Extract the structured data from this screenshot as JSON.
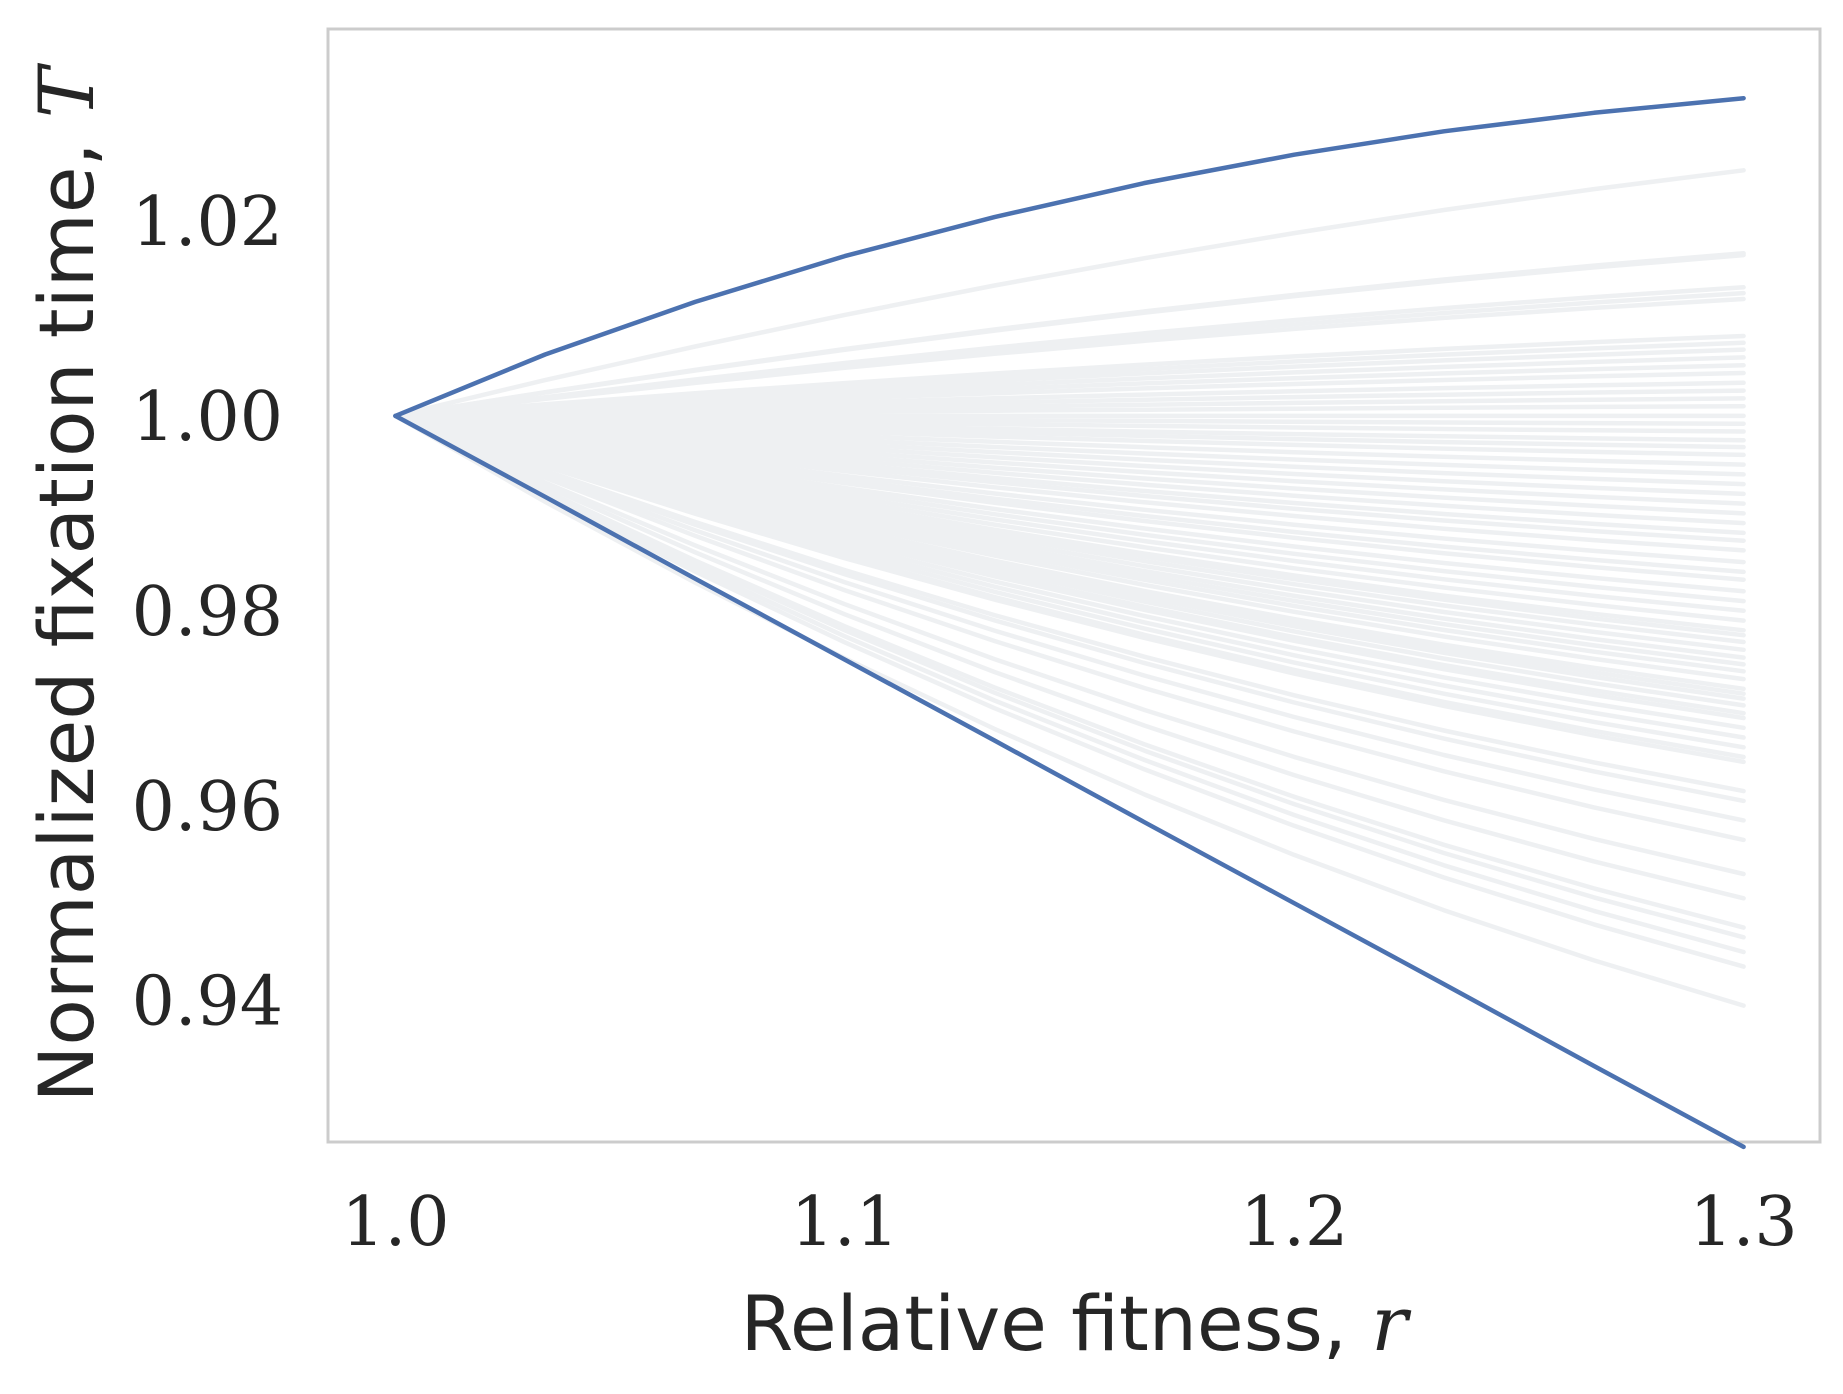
{
  "chart_data": {
    "type": "line",
    "xlabel": "Relative fitness, ",
    "xlabel_symbol": "r",
    "ylabel": "Normalized fixation time, ",
    "ylabel_symbol": "T",
    "xlim": [
      0.985,
      1.317
    ],
    "ylim": [
      0.9255,
      1.0397
    ],
    "x_ticks": [
      1.0,
      1.1,
      1.2,
      1.3
    ],
    "x_tick_labels": [
      "1.0",
      "1.1",
      "1.2",
      "1.3"
    ],
    "y_ticks": [
      0.94,
      0.96,
      0.98,
      1.0,
      1.02
    ],
    "y_tick_labels": [
      "0.94",
      "0.96",
      "0.98",
      "1.00",
      "1.02"
    ],
    "grid": false,
    "x": [
      1.0,
      1.0333,
      1.0667,
      1.1,
      1.1333,
      1.1667,
      1.2,
      1.2333,
      1.2667,
      1.3
    ],
    "highlight_color": "#4c72b0",
    "background_color": "#eef0f2",
    "series": [
      {
        "values": [
          1.0,
          1.0063,
          1.0117,
          1.0164,
          1.0204,
          1.0239,
          1.0268,
          1.0292,
          1.0311,
          1.0326
        ],
        "highlight": true
      },
      {
        "values": [
          1.0,
          0.9917,
          0.9833,
          0.975,
          0.9667,
          0.9583,
          0.95,
          0.9417,
          0.9333,
          0.925
        ],
        "highlight": true
      }
    ],
    "background_endpoints": [
      1.0252,
      1.0167,
      1.0165,
      1.0132,
      1.0126,
      1.012,
      1.0082,
      1.0075,
      1.0068,
      1.006,
      1.0052,
      1.0044,
      1.0034,
      1.0026,
      1.0018,
      1.001,
      1.0,
      0.9992,
      0.9984,
      0.9975,
      0.9968,
      0.996,
      0.995,
      0.994,
      0.993,
      0.992,
      0.991,
      0.99,
      0.989,
      0.988,
      0.9872,
      0.9862,
      0.985,
      0.984,
      0.9832,
      0.982,
      0.981,
      0.98,
      0.979,
      0.978,
      0.9775,
      0.9768,
      0.976,
      0.9752,
      0.9745,
      0.9738,
      0.973,
      0.972,
      0.9715,
      0.971,
      0.9703,
      0.9695,
      0.969,
      0.968,
      0.967,
      0.966,
      0.965,
      0.9645,
      0.9615,
      0.9605,
      0.9585,
      0.9565,
      0.953,
      0.9505,
      0.9475,
      0.9465,
      0.945,
      0.9435,
      0.9395
    ]
  }
}
